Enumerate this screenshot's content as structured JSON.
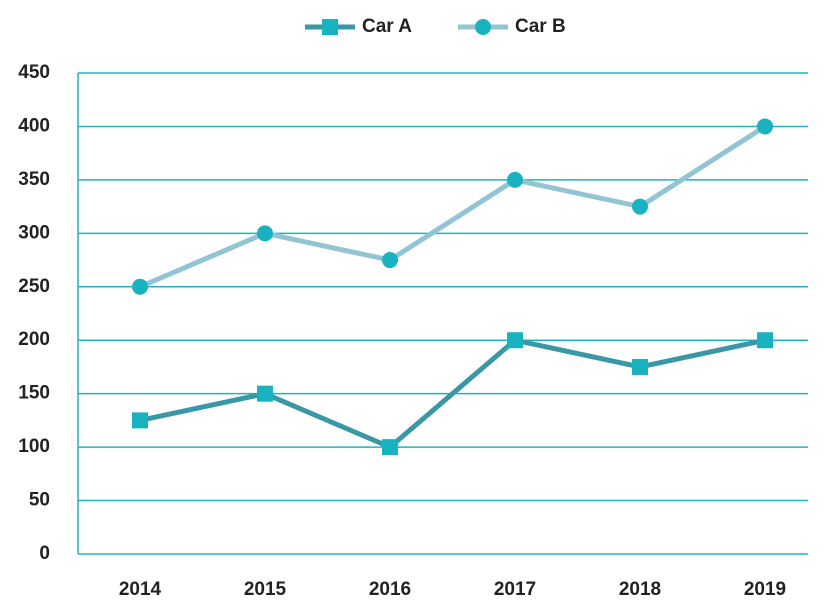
{
  "chart_data": {
    "type": "line",
    "categories": [
      "2014",
      "2015",
      "2016",
      "2017",
      "2018",
      "2019"
    ],
    "series": [
      {
        "name": "Car A",
        "color": "#3a97a6",
        "marker_color": "#19b2c0",
        "marker": "square",
        "values": [
          125,
          150,
          100,
          200,
          175,
          200
        ]
      },
      {
        "name": "Car B",
        "color": "#93c4d3",
        "marker_color": "#19b2c0",
        "marker": "circle",
        "values": [
          250,
          300,
          275,
          350,
          325,
          400
        ]
      }
    ],
    "ylim": [
      0,
      450
    ],
    "yticks": [
      0,
      50,
      100,
      150,
      200,
      250,
      300,
      350,
      400,
      450
    ],
    "grid": true,
    "grid_color": "#1fb3c0",
    "legend": "top"
  }
}
